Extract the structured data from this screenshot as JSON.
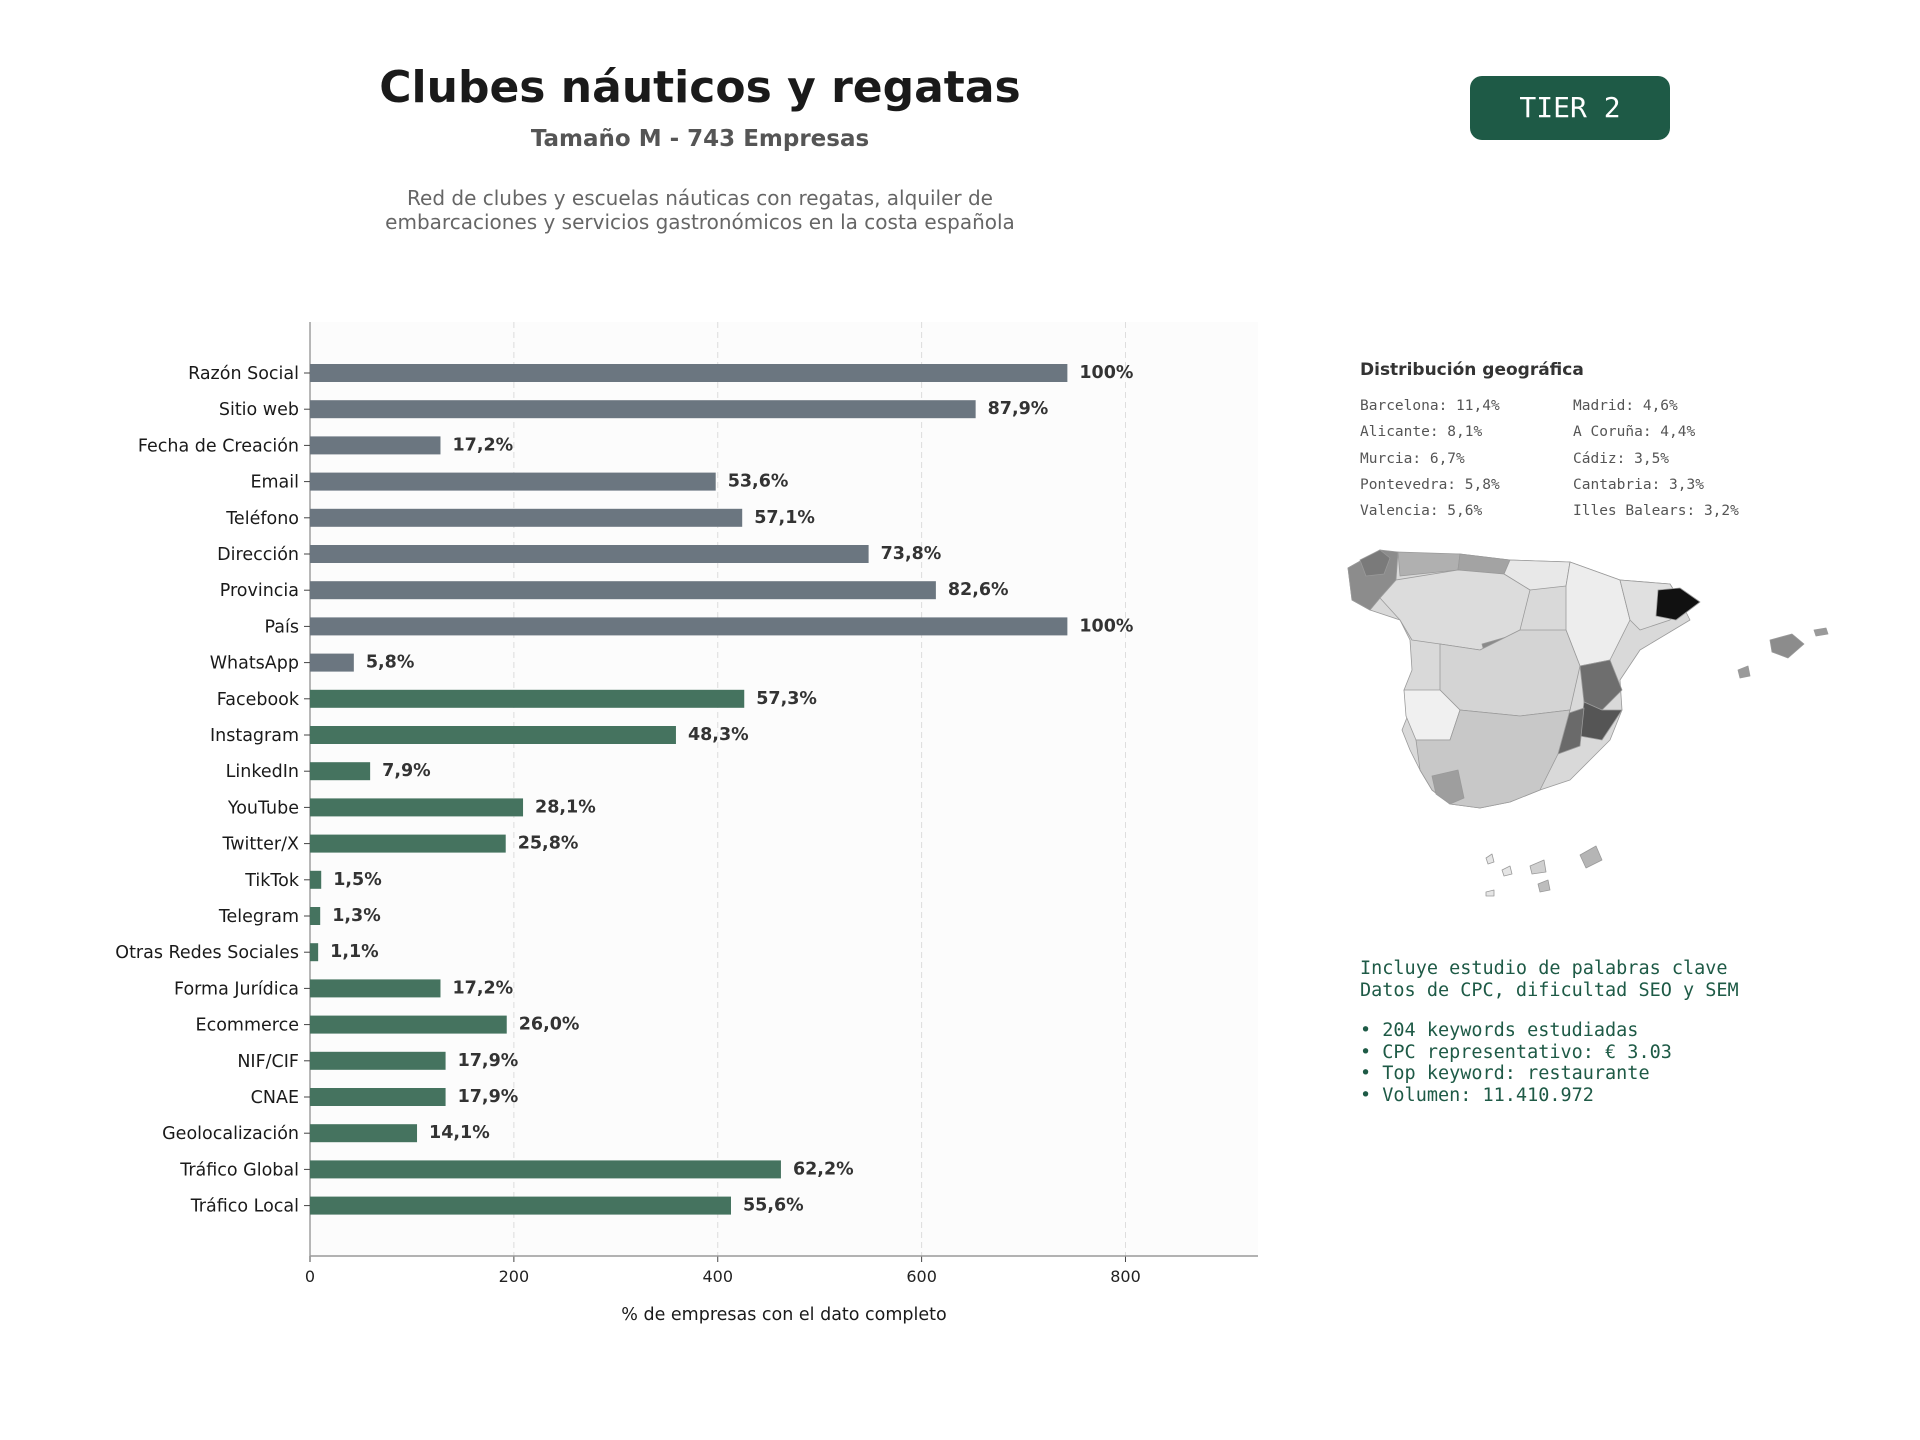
{
  "header": {
    "title": "Clubes náuticos y regatas",
    "subtitle": "Tamaño M - 743 Empresas",
    "description_line1": "Red de clubes y escuelas náuticas con regatas, alquiler de",
    "description_line2": "embarcaciones y servicios gastronómicos en la costa española",
    "tier_badge": "TIER 2"
  },
  "colors": {
    "contact_bar": "#6b7680",
    "digital_bar": "#45735f",
    "accent": "#1e5a46"
  },
  "chart_data": {
    "type": "bar",
    "orientation": "horizontal",
    "categories": [
      "Razón Social",
      "Sitio web",
      "Fecha de Creación",
      "Email",
      "Teléfono",
      "Dirección",
      "Provincia",
      "País",
      "WhatsApp",
      "Facebook",
      "Instagram",
      "LinkedIn",
      "YouTube",
      "Twitter/X",
      "TikTok",
      "Telegram",
      "Otras Redes Sociales",
      "Forma Jurídica",
      "Ecommerce",
      "NIF/CIF",
      "CNAE",
      "Geolocalización",
      "Tráfico Global",
      "Tráfico Local"
    ],
    "values": [
      743,
      653,
      128,
      398,
      424,
      548,
      614,
      743,
      43,
      426,
      359,
      59,
      209,
      192,
      11,
      10,
      8,
      128,
      193,
      133,
      133,
      105,
      462,
      413
    ],
    "labels": [
      "100%",
      "87,9%",
      "17,2%",
      "53,6%",
      "57,1%",
      "73,8%",
      "82,6%",
      "100%",
      "5,8%",
      "57,3%",
      "48,3%",
      "7,9%",
      "28,1%",
      "25,8%",
      "1,5%",
      "1,3%",
      "1,1%",
      "17,2%",
      "26,0%",
      "17,9%",
      "17,9%",
      "14,1%",
      "62,2%",
      "55,6%"
    ],
    "groups": [
      "contact",
      "contact",
      "contact",
      "contact",
      "contact",
      "contact",
      "contact",
      "contact",
      "contact",
      "digital",
      "digital",
      "digital",
      "digital",
      "digital",
      "digital",
      "digital",
      "digital",
      "digital",
      "digital",
      "digital",
      "digital",
      "digital",
      "digital",
      "digital"
    ],
    "xlabel": "% de empresas con el dato completo",
    "ylabel": "",
    "xlim": [
      0,
      930
    ],
    "xticks": [
      0,
      200,
      400,
      600,
      800
    ],
    "grid": "vertical-dashed"
  },
  "geo": {
    "title": "Distribución geográfica",
    "rows": [
      [
        "Barcelona: 11,4%",
        "Madrid: 4,6%"
      ],
      [
        "Alicante: 8,1%",
        "A Coruña: 4,4%"
      ],
      [
        "Murcia: 6,7%",
        "Cádiz: 3,5%"
      ],
      [
        "Pontevedra: 5,8%",
        "Cantabria: 3,3%"
      ],
      [
        "Valencia: 5,6%",
        "Illes Balears: 3,2%"
      ]
    ]
  },
  "keywords": {
    "line1": "Incluye estudio de palabras clave",
    "line2": "Datos de CPC, dificultad SEO y SEM",
    "bullet1": "• 204 keywords estudiadas",
    "bullet2": "• CPC representativo: € 3.03",
    "bullet3": "• Top keyword: restaurante",
    "bullet4": "• Volumen: 11.410.972"
  }
}
